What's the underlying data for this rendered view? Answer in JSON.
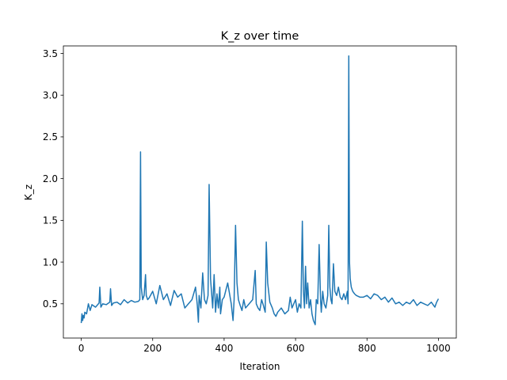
{
  "chart_data": {
    "type": "line",
    "title": "K_z over time",
    "xlabel": "Iteration",
    "ylabel": "K_z",
    "xlim": [
      -50,
      1050
    ],
    "ylim": [
      0.09,
      3.59
    ],
    "xticks": [
      0,
      200,
      400,
      600,
      800,
      1000
    ],
    "yticks": [
      0.5,
      1.0,
      1.5,
      2.0,
      2.5,
      3.0,
      3.5
    ],
    "xtick_labels": [
      "0",
      "200",
      "400",
      "600",
      "800",
      "1000"
    ],
    "ytick_labels": [
      "0.5",
      "1.0",
      "1.5",
      "2.0",
      "2.5",
      "3.0",
      "3.5"
    ],
    "grid": false,
    "line_color": "#1f77b4",
    "series": [
      {
        "x": [
          0,
          2,
          4,
          6,
          8,
          10,
          15,
          20,
          25,
          30,
          40,
          50,
          52,
          55,
          60,
          70,
          80,
          82,
          85,
          90,
          100,
          110,
          120,
          130,
          140,
          150,
          160,
          164,
          166,
          168,
          172,
          176,
          180,
          182,
          186,
          190,
          200,
          210,
          220,
          230,
          240,
          250,
          260,
          270,
          280,
          290,
          300,
          310,
          320,
          325,
          328,
          330,
          335,
          340,
          345,
          350,
          355,
          358,
          362,
          368,
          372,
          376,
          380,
          384,
          388,
          390,
          395,
          400,
          410,
          420,
          425,
          428,
          432,
          436,
          440,
          445,
          450,
          455,
          460,
          470,
          480,
          487,
          490,
          495,
          500,
          505,
          510,
          515,
          518,
          522,
          528,
          535,
          540,
          545,
          550,
          560,
          570,
          580,
          585,
          590,
          600,
          605,
          610,
          615,
          619,
          622,
          625,
          628,
          631,
          634,
          638,
          642,
          646,
          650,
          655,
          658,
          662,
          666,
          670,
          672,
          676,
          680,
          685,
          690,
          693,
          696,
          699,
          702,
          706,
          710,
          715,
          720,
          725,
          730,
          735,
          740,
          745,
          747,
          749,
          751,
          753,
          756,
          760,
          765,
          770,
          780,
          790,
          800,
          810,
          820,
          830,
          840,
          850,
          860,
          870,
          880,
          890,
          900,
          910,
          920,
          930,
          940,
          950,
          960,
          970,
          980,
          990,
          995,
          1000
        ],
        "y": [
          0.27,
          0.38,
          0.3,
          0.36,
          0.33,
          0.4,
          0.38,
          0.5,
          0.42,
          0.49,
          0.46,
          0.51,
          0.7,
          0.46,
          0.5,
          0.49,
          0.52,
          0.68,
          0.48,
          0.51,
          0.52,
          0.49,
          0.55,
          0.51,
          0.54,
          0.52,
          0.53,
          0.55,
          2.32,
          0.7,
          0.55,
          0.6,
          0.85,
          0.6,
          0.55,
          0.57,
          0.65,
          0.5,
          0.72,
          0.55,
          0.62,
          0.48,
          0.66,
          0.58,
          0.62,
          0.45,
          0.5,
          0.55,
          0.7,
          0.48,
          0.28,
          0.6,
          0.45,
          0.87,
          0.55,
          0.5,
          0.6,
          1.93,
          0.8,
          0.45,
          0.85,
          0.4,
          0.62,
          0.45,
          0.7,
          0.38,
          0.55,
          0.58,
          0.75,
          0.5,
          0.3,
          0.55,
          1.44,
          0.75,
          0.55,
          0.48,
          0.42,
          0.55,
          0.45,
          0.5,
          0.55,
          0.9,
          0.5,
          0.45,
          0.42,
          0.55,
          0.48,
          0.4,
          1.24,
          0.75,
          0.52,
          0.45,
          0.38,
          0.35,
          0.4,
          0.45,
          0.38,
          0.42,
          0.58,
          0.45,
          0.55,
          0.4,
          0.5,
          0.45,
          1.49,
          0.65,
          0.45,
          0.95,
          0.5,
          0.75,
          0.45,
          0.55,
          0.38,
          0.3,
          0.25,
          0.55,
          0.5,
          1.21,
          0.55,
          0.4,
          0.65,
          0.5,
          0.45,
          0.6,
          1.44,
          0.7,
          0.55,
          0.5,
          0.98,
          0.65,
          0.6,
          0.7,
          0.58,
          0.55,
          0.62,
          0.55,
          0.65,
          0.5,
          3.47,
          1.0,
          0.8,
          0.7,
          0.65,
          0.62,
          0.6,
          0.58,
          0.58,
          0.6,
          0.56,
          0.62,
          0.6,
          0.55,
          0.58,
          0.52,
          0.57,
          0.5,
          0.52,
          0.48,
          0.52,
          0.5,
          0.55,
          0.48,
          0.52,
          0.5,
          0.48,
          0.52,
          0.46,
          0.52,
          0.56
        ]
      }
    ]
  }
}
